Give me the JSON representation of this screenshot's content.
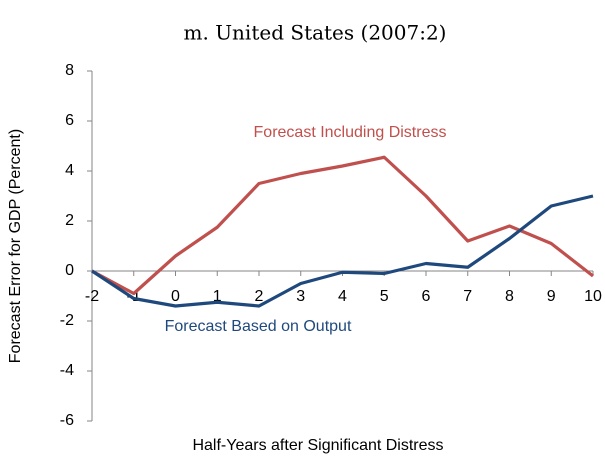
{
  "chart_data": {
    "type": "line",
    "title": "m. United States (2007:2)",
    "x_label": "Half-Years after Significant Distress",
    "y_label": "Forecast Error for GDP (Percent)",
    "x": [
      -2,
      -1,
      0,
      1,
      2,
      3,
      4,
      5,
      6,
      7,
      8,
      9,
      10
    ],
    "series": [
      {
        "name": "Forecast Including Distress",
        "color": "#c0504d",
        "values": [
          0,
          -0.9,
          0.6,
          1.75,
          3.5,
          3.9,
          4.2,
          4.55,
          3.0,
          1.2,
          1.8,
          1.1,
          -0.2
        ]
      },
      {
        "name": "Forecast Based on Output",
        "color": "#1f497d",
        "values": [
          0,
          -1.1,
          -1.4,
          -1.25,
          -1.4,
          -0.5,
          -0.05,
          -0.1,
          0.3,
          0.15,
          1.3,
          2.6,
          3.0
        ]
      }
    ],
    "xlim": [
      -2,
      10
    ],
    "ylim": [
      -6,
      8
    ],
    "xticks": [
      -2,
      -1,
      0,
      1,
      2,
      3,
      4,
      5,
      6,
      7,
      8,
      9,
      10
    ],
    "yticks": [
      -6,
      -4,
      -2,
      0,
      2,
      4,
      6,
      8
    ],
    "grid": false
  }
}
